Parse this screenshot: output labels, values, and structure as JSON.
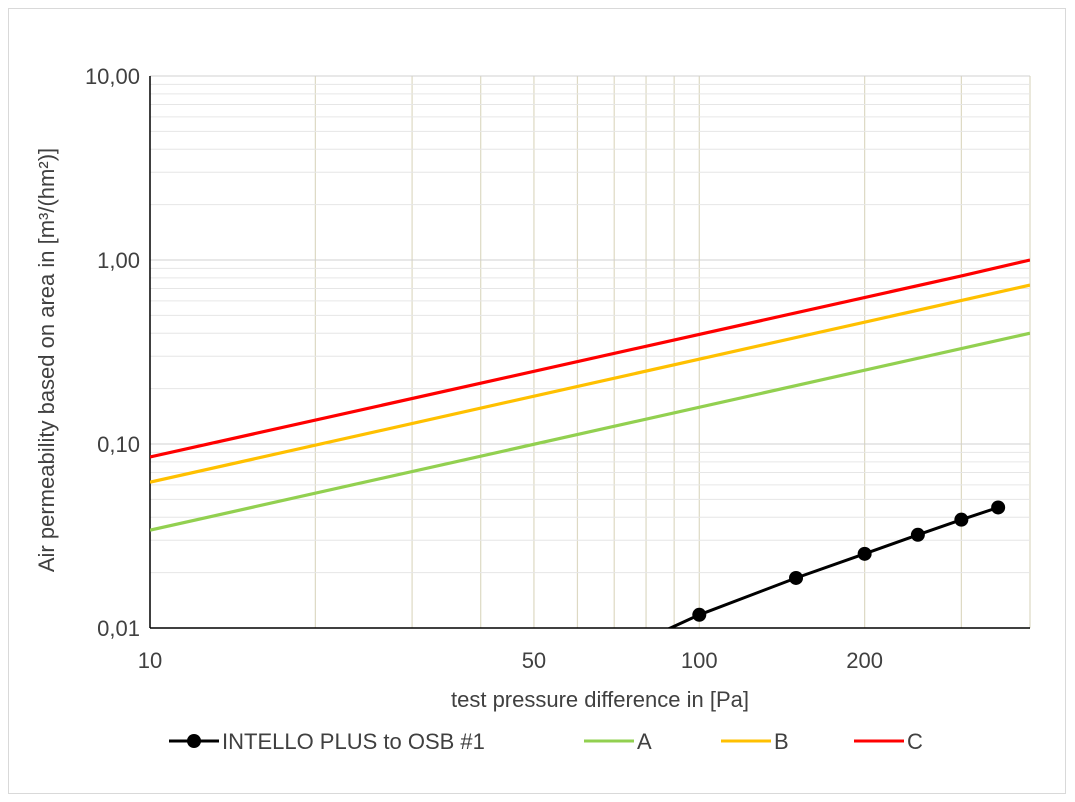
{
  "chart_data": {
    "type": "line",
    "title": "",
    "xlabel": "test pressure difference in [Pa]",
    "ylabel": "Air permeability based on area in [m³/(hm²)]",
    "x_scale": "log",
    "y_scale": "log",
    "xlim": [
      10,
      400
    ],
    "ylim": [
      0.01,
      10
    ],
    "x_ticks": [
      {
        "value": 10,
        "label": "10"
      },
      {
        "value": 50,
        "label": "50"
      },
      {
        "value": 100,
        "label": "100"
      },
      {
        "value": 200,
        "label": "200"
      }
    ],
    "y_ticks": [
      {
        "value": 10,
        "label": "10,00"
      },
      {
        "value": 1,
        "label": "1,00"
      },
      {
        "value": 0.1,
        "label": "0,10"
      },
      {
        "value": 0.01,
        "label": "0,01"
      }
    ],
    "grid": true,
    "legend_position": "bottom",
    "series": [
      {
        "name": "INTELLO PLUS to OSB #1",
        "color": "#000000",
        "markers": true,
        "points": [
          {
            "x": 88,
            "y": 0.0099
          },
          {
            "x": 100,
            "y": 0.0118
          },
          {
            "x": 150,
            "y": 0.0187
          },
          {
            "x": 200,
            "y": 0.0253
          },
          {
            "x": 250,
            "y": 0.0321
          },
          {
            "x": 300,
            "y": 0.0388
          },
          {
            "x": 350,
            "y": 0.0452
          }
        ],
        "marker_points": [
          {
            "x": 100,
            "y": 0.0118
          },
          {
            "x": 150,
            "y": 0.0187
          },
          {
            "x": 200,
            "y": 0.0253
          },
          {
            "x": 250,
            "y": 0.0321
          },
          {
            "x": 300,
            "y": 0.0388
          },
          {
            "x": 350,
            "y": 0.0452
          }
        ]
      },
      {
        "name": "A",
        "color": "#92d050",
        "markers": false,
        "points": [
          {
            "x": 10,
            "y": 0.034
          },
          {
            "x": 400,
            "y": 0.4
          }
        ]
      },
      {
        "name": "B",
        "color": "#ffc000",
        "markers": false,
        "points": [
          {
            "x": 10,
            "y": 0.062
          },
          {
            "x": 400,
            "y": 0.73
          }
        ]
      },
      {
        "name": "C",
        "color": "#ff0000",
        "markers": false,
        "points": [
          {
            "x": 10,
            "y": 0.085
          },
          {
            "x": 300,
            "y": 0.82
          },
          {
            "x": 400,
            "y": 1.0
          }
        ]
      }
    ]
  }
}
